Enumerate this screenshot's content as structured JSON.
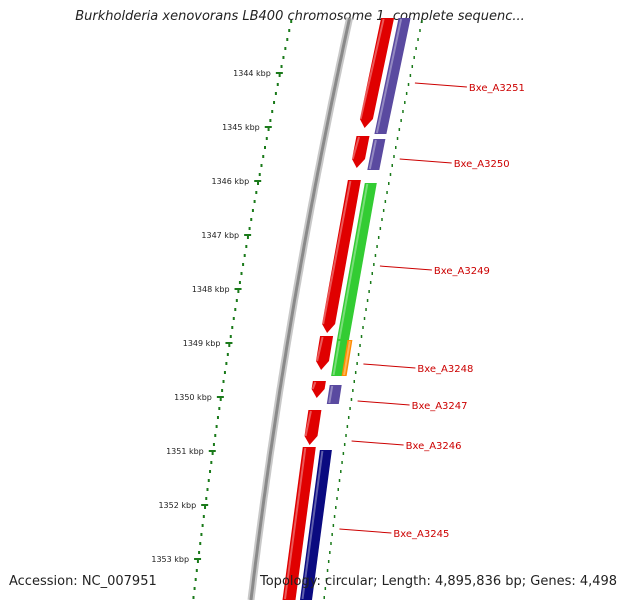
{
  "title": "Burkholderia xenovorans LB400 chromosome 1, complete sequenc...",
  "footer": {
    "accession": "Accession: NC_007951",
    "summary": "Topology: circular; Length: 4,895,836 bp; Genes: 4,498"
  },
  "colors": {
    "backbone": "#8a8a8a",
    "ruler": "#1a7a1a",
    "forward_cds": "#e00000",
    "reverse_cds": "#5a4aa0",
    "reverse_cds_dark": "#0a0a80",
    "green_feature": "#33cc33",
    "orange_feature": "#ff8c00",
    "gene_label": "#cc0000"
  },
  "scale": {
    "unit": "kbp",
    "ticks": [
      "1344 kbp",
      "1345 kbp",
      "1346 kbp",
      "1347 kbp",
      "1348 kbp",
      "1349 kbp",
      "1350 kbp",
      "1351 kbp",
      "1352 kbp",
      "1353 kbp"
    ]
  },
  "genes": [
    "Bxe_A3251",
    "Bxe_A3250",
    "Bxe_A3249",
    "Bxe_A3248",
    "Bxe_A3247",
    "Bxe_A3246",
    "Bxe_A3245"
  ]
}
